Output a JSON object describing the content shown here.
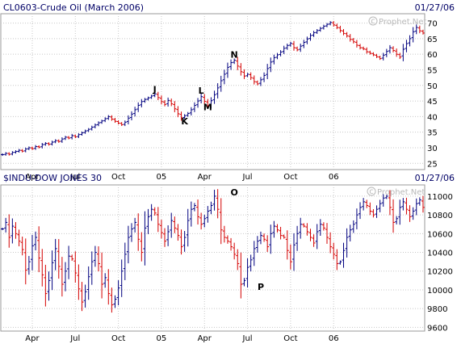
{
  "colors": {
    "background": "#ffffff",
    "border": "#9a9a9a",
    "grid": "#c8c8c8",
    "header_text": "#000066",
    "up_bar": "#00007f",
    "down_bar": "#d40000",
    "watermark": "#b9b9b9"
  },
  "icons": {
    "watermark": "copyright-icon"
  },
  "chart_data": [
    {
      "type": "ohlc",
      "title": "CL0603-Crude Oil (March 2006)",
      "date": "01/27/06",
      "watermark": "Prophet.Net",
      "x_ticks": [
        "Apr",
        "Jul",
        "Oct",
        "05",
        "Apr",
        "Jul",
        "Oct",
        "06"
      ],
      "y_ticks": [
        "25",
        "30",
        "35",
        "40",
        "45",
        "50",
        "55",
        "60",
        "65",
        "70"
      ],
      "ylim": [
        23,
        73
      ],
      "grid": true,
      "annotations": [
        {
          "label": "J",
          "week": 46,
          "value": 47.7
        },
        {
          "label": "K",
          "week": 55,
          "value": 37.5
        },
        {
          "label": "L",
          "week": 60,
          "value": 47.3
        },
        {
          "label": "M",
          "week": 62,
          "value": 42.1
        },
        {
          "label": "N",
          "week": 70,
          "value": 58.9
        },
        {
          "label": "",
          "week": 100,
          "value": 70.5
        }
      ],
      "closes": [
        27.8,
        28.2,
        27.9,
        28.5,
        28.8,
        29.2,
        28.9,
        29.6,
        30.0,
        29.7,
        30.4,
        30.2,
        31.0,
        31.4,
        31.1,
        31.8,
        32.3,
        32.0,
        32.8,
        33.4,
        33.1,
        33.9,
        33.5,
        34.2,
        34.8,
        35.4,
        35.9,
        36.6,
        37.3,
        38.0,
        38.6,
        39.3,
        40.0,
        39.2,
        38.5,
        37.9,
        37.4,
        38.2,
        39.5,
        40.8,
        42.2,
        43.6,
        44.8,
        45.5,
        46.0,
        46.6,
        47.3,
        46.1,
        44.8,
        43.9,
        45.2,
        44.1,
        42.5,
        40.9,
        39.6,
        40.3,
        41.0,
        42.2,
        43.6,
        45.0,
        46.4,
        44.9,
        43.5,
        45.1,
        47.0,
        49.2,
        51.5,
        53.6,
        55.8,
        57.3,
        58.1,
        56.2,
        54.4,
        53.0,
        53.6,
        52.5,
        51.2,
        50.5,
        51.8,
        53.2,
        55.4,
        57.5,
        58.9,
        59.8,
        60.7,
        61.9,
        62.8,
        63.5,
        62.1,
        61.4,
        62.6,
        63.8,
        64.9,
        66.0,
        66.9,
        67.6,
        68.3,
        69.0,
        69.6,
        70.2,
        69.4,
        68.6,
        67.6,
        66.7,
        65.9,
        64.8,
        64.0,
        62.9,
        62.1,
        61.7,
        60.8,
        60.3,
        59.8,
        59.2,
        58.6,
        59.7,
        60.9,
        62.1,
        61.2,
        60.0,
        59.1,
        61.6,
        63.4,
        65.0,
        67.2,
        68.6,
        67.5,
        66.8
      ]
    },
    {
      "type": "ohlc",
      "title": "$INDU-DOW JONES 30",
      "date": "01/27/06",
      "watermark": "Prophet.Net",
      "x_ticks": [
        "Apr",
        "Jul",
        "Oct",
        "05",
        "Apr",
        "Jul",
        "Oct",
        "06"
      ],
      "y_ticks": [
        "9600",
        "9800",
        "10000",
        "10200",
        "10400",
        "10600",
        "10800",
        "11000"
      ],
      "ylim": [
        9560,
        11120
      ],
      "grid": true,
      "annotations": [
        {
          "label": "O",
          "week": 70,
          "value": 11010
        },
        {
          "label": "P",
          "week": 78,
          "value": 10000
        }
      ],
      "closes": [
        10650,
        10720,
        10560,
        10680,
        10600,
        10520,
        10430,
        10210,
        10300,
        10470,
        10560,
        10340,
        10160,
        9960,
        10100,
        10290,
        10440,
        10250,
        10060,
        10200,
        10360,
        10330,
        10180,
        10010,
        9870,
        9980,
        10140,
        10300,
        10400,
        10280,
        10060,
        10130,
        9960,
        9840,
        9900,
        10020,
        10200,
        10380,
        10560,
        10650,
        10720,
        10540,
        10400,
        10660,
        10780,
        10860,
        10820,
        10700,
        10610,
        10520,
        10620,
        10740,
        10660,
        10580,
        10460,
        10560,
        10740,
        10860,
        10900,
        10780,
        10700,
        10760,
        10840,
        10900,
        11000,
        10860,
        10640,
        10560,
        10520,
        10460,
        10380,
        10280,
        10060,
        10100,
        10240,
        10320,
        10440,
        10520,
        10580,
        10540,
        10460,
        10600,
        10680,
        10640,
        10580,
        10560,
        10420,
        10300,
        10480,
        10600,
        10700,
        10680,
        10620,
        10560,
        10500,
        10620,
        10700,
        10660,
        10560,
        10460,
        10380,
        10280,
        10300,
        10420,
        10560,
        10640,
        10700,
        10800,
        10880,
        10940,
        10900,
        10840,
        10800,
        10860,
        10920,
        10980,
        11000,
        10880,
        10720,
        10760,
        10880,
        10940,
        10860,
        10780,
        10840,
        10920,
        10960,
        10880
      ]
    }
  ]
}
